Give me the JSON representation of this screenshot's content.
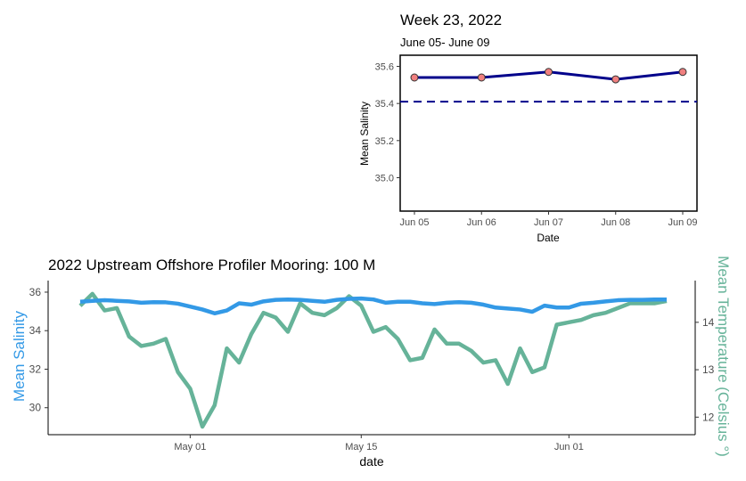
{
  "chart_data": [
    {
      "type": "line",
      "title": "Week 23, 2022",
      "subtitle": "June 05- June 09",
      "xlabel": "Date",
      "ylabel": "Mean Salinity",
      "x": [
        "Jun 05",
        "Jun 06",
        "Jun 07",
        "Jun 08",
        "Jun 09"
      ],
      "series": [
        {
          "values": [
            35.54,
            35.54,
            35.57,
            35.53,
            35.57
          ],
          "color": "#00008b",
          "marker_color": "#f08080"
        }
      ],
      "reference_line": {
        "value": 35.41,
        "style": "dashed",
        "color": "#00008b"
      },
      "yticks": [
        35.0,
        35.2,
        35.4,
        35.6
      ],
      "ylim": [
        34.82,
        35.66
      ],
      "grid": false
    },
    {
      "type": "line",
      "title": "2022 Upstream Offshore Profiler Mooring: 100 M",
      "xlabel": "date",
      "ylabel": "Mean Salinity",
      "ylabel_right": "Mean Temperature (Celsius °)",
      "xticks": [
        "May 01",
        "May 15",
        "Jun 01"
      ],
      "x_dates": [
        "2022-04-22",
        "2022-04-23",
        "2022-04-24",
        "2022-04-25",
        "2022-04-26",
        "2022-04-27",
        "2022-04-28",
        "2022-04-29",
        "2022-04-30",
        "2022-05-01",
        "2022-05-02",
        "2022-05-03",
        "2022-05-04",
        "2022-05-05",
        "2022-05-06",
        "2022-05-07",
        "2022-05-08",
        "2022-05-09",
        "2022-05-10",
        "2022-05-11",
        "2022-05-12",
        "2022-05-13",
        "2022-05-14",
        "2022-05-15",
        "2022-05-16",
        "2022-05-17",
        "2022-05-18",
        "2022-05-19",
        "2022-05-20",
        "2022-05-21",
        "2022-05-22",
        "2022-05-23",
        "2022-05-24",
        "2022-05-25",
        "2022-05-26",
        "2022-05-27",
        "2022-05-28",
        "2022-05-29",
        "2022-05-30",
        "2022-05-31",
        "2022-06-01",
        "2022-06-02",
        "2022-06-03",
        "2022-06-04",
        "2022-06-05",
        "2022-06-06",
        "2022-06-07",
        "2022-06-08",
        "2022-06-09"
      ],
      "series": [
        {
          "name": "Mean Salinity",
          "axis": "left",
          "color": "#3399e6",
          "values": [
            35.5,
            35.55,
            35.58,
            35.55,
            35.52,
            35.45,
            35.48,
            35.47,
            35.4,
            35.25,
            35.1,
            34.9,
            35.05,
            35.42,
            35.35,
            35.52,
            35.6,
            35.62,
            35.6,
            35.55,
            35.5,
            35.6,
            35.65,
            35.67,
            35.62,
            35.45,
            35.5,
            35.5,
            35.42,
            35.38,
            35.45,
            35.48,
            35.45,
            35.35,
            35.2,
            35.15,
            35.1,
            34.98,
            35.3,
            35.2,
            35.2,
            35.4,
            35.45,
            35.52,
            35.58,
            35.6,
            35.6,
            35.62,
            35.62
          ]
        },
        {
          "name": "Mean Temperature",
          "axis": "right",
          "color": "#66b399",
          "values": [
            14.35,
            14.6,
            14.25,
            14.3,
            13.7,
            13.5,
            13.55,
            13.65,
            12.95,
            12.6,
            11.8,
            12.25,
            13.45,
            13.15,
            13.75,
            14.2,
            14.1,
            13.8,
            14.4,
            14.2,
            14.15,
            14.3,
            14.55,
            14.35,
            13.8,
            13.9,
            13.65,
            13.2,
            13.25,
            13.85,
            13.55,
            13.55,
            13.4,
            13.15,
            13.2,
            12.7,
            13.45,
            12.95,
            13.05,
            13.95,
            14.0,
            14.05,
            14.15,
            14.2,
            14.3,
            14.4,
            14.4,
            14.4,
            14.45
          ]
        }
      ],
      "yticks_left": [
        30,
        32,
        34,
        36
      ],
      "ylim_left": [
        28.6,
        36.6
      ],
      "yticks_right": [
        12,
        13,
        14
      ],
      "ylim_right": [
        11.63,
        14.88
      ],
      "grid": false
    }
  ]
}
